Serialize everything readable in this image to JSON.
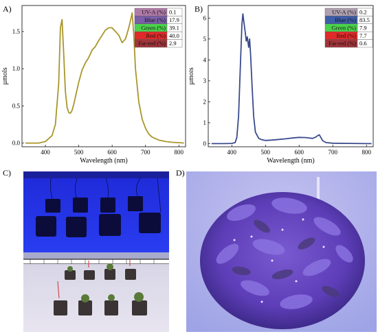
{
  "panels": {
    "A": "A)",
    "B": "B)",
    "C": "C)",
    "D": "D)"
  },
  "chart_data": [
    {
      "type": "line",
      "panel": "A)",
      "xlabel": "Wavelength (nm)",
      "ylabel": "µmols",
      "xlim": [
        330,
        820
      ],
      "ylim": [
        -0.05,
        1.85
      ],
      "xticks": [
        400,
        500,
        600,
        700,
        800
      ],
      "yticks": [
        0.0,
        0.5,
        1.0,
        1.5
      ],
      "ytick_labels": [
        "0.0",
        "0.5",
        "1.0",
        "1.5"
      ],
      "line_color": "#a8962a",
      "series": [
        {
          "x": [
            340,
            380,
            400,
            420,
            430,
            440,
            445,
            450,
            455,
            460,
            465,
            470,
            475,
            480,
            485,
            490,
            500,
            510,
            520,
            530,
            540,
            550,
            560,
            570,
            580,
            590,
            600,
            610,
            620,
            630,
            640,
            650,
            655,
            660,
            665,
            670,
            680,
            690,
            700,
            710,
            720,
            740,
            760,
            780,
            800,
            815
          ],
          "y": [
            0,
            0,
            0.02,
            0.1,
            0.25,
            0.8,
            1.55,
            1.66,
            1.2,
            0.7,
            0.48,
            0.41,
            0.4,
            0.44,
            0.52,
            0.62,
            0.82,
            0.98,
            1.08,
            1.15,
            1.25,
            1.3,
            1.38,
            1.45,
            1.52,
            1.55,
            1.55,
            1.5,
            1.45,
            1.35,
            1.4,
            1.55,
            1.65,
            1.75,
            1.45,
            1.0,
            0.55,
            0.32,
            0.2,
            0.12,
            0.08,
            0.04,
            0.02,
            0.01,
            0.005,
            0
          ]
        }
      ],
      "legend_table": [
        {
          "label": "UV-A (%)",
          "value": "0.1",
          "color": "#b07aa8"
        },
        {
          "label": "Blue (%)",
          "value": "17.9",
          "color": "#7b5ea8"
        },
        {
          "label": "Green (%)",
          "value": "39.1",
          "color": "#4bd14b"
        },
        {
          "label": "Red (%)",
          "value": "40.0",
          "color": "#e02a2a"
        },
        {
          "label": "Far-red (%)",
          "value": "2.9",
          "color": "#a0343a"
        }
      ]
    },
    {
      "type": "line",
      "panel": "B)",
      "xlabel": "Wavelength (nm)",
      "ylabel": "µmols",
      "xlim": [
        330,
        820
      ],
      "ylim": [
        -0.15,
        6.6
      ],
      "xticks": [
        400,
        500,
        600,
        700,
        800
      ],
      "yticks": [
        0,
        1,
        2,
        3,
        4,
        5,
        6
      ],
      "ytick_labels": [
        "0",
        "1",
        "2",
        "3",
        "4",
        "5",
        "6"
      ],
      "line_color": "#3a4a8c",
      "series": [
        {
          "x": [
            340,
            380,
            400,
            410,
            415,
            420,
            425,
            430,
            433,
            436,
            440,
            443,
            446,
            450,
            453,
            456,
            460,
            465,
            470,
            480,
            490,
            500,
            520,
            540,
            560,
            580,
            600,
            620,
            640,
            650,
            655,
            660,
            665,
            670,
            680,
            700,
            750,
            800,
            815
          ],
          "y": [
            0,
            0,
            0.01,
            0.05,
            0.3,
            1.3,
            3.5,
            5.7,
            6.2,
            5.8,
            5.3,
            4.9,
            5.1,
            4.6,
            5.0,
            4.2,
            2.8,
            1.3,
            0.55,
            0.25,
            0.18,
            0.15,
            0.17,
            0.2,
            0.23,
            0.27,
            0.3,
            0.29,
            0.25,
            0.32,
            0.38,
            0.42,
            0.28,
            0.14,
            0.05,
            0.02,
            0.01,
            0.0,
            0
          ]
        }
      ],
      "legend_table": [
        {
          "label": "UV-A (%)",
          "value": "0.2",
          "color": "#b0a0b0"
        },
        {
          "label": "Blue (%)",
          "value": "83.5",
          "color": "#3e5ea8"
        },
        {
          "label": "Green (%)",
          "value": "7.9",
          "color": "#4bd14b"
        },
        {
          "label": "Red (%)",
          "value": "7.7",
          "color": "#e02a2a"
        },
        {
          "label": "Far-red (%)",
          "value": "0.6",
          "color": "#a0343a"
        }
      ]
    }
  ]
}
